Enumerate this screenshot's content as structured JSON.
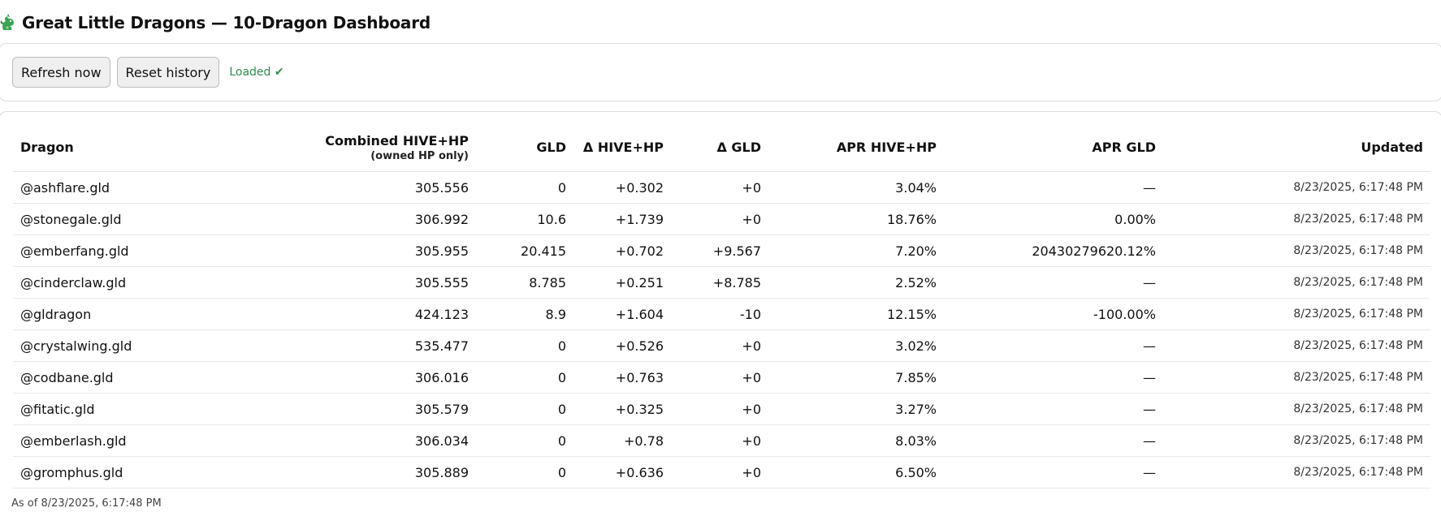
{
  "header": {
    "title": "Great Little Dragons — 10-Dragon Dashboard"
  },
  "toolbar": {
    "refresh_label": "Refresh now",
    "reset_label": "Reset history",
    "status": "Loaded ✔"
  },
  "table": {
    "columns": {
      "dragon": "Dragon",
      "combined": "Combined HIVE+HP",
      "combined_sub": "(owned HP only)",
      "gld": "GLD",
      "delta_hive": "Δ HIVE+HP",
      "delta_gld": "Δ GLD",
      "apr_hive": "APR HIVE+HP",
      "apr_gld": "APR GLD",
      "updated": "Updated"
    },
    "rows": [
      {
        "dragon": "@ashflare.gld",
        "combined": "305.556",
        "gld": "0",
        "delta_hive": "+0.302",
        "delta_gld": "+0",
        "apr_hive": "3.04%",
        "apr_gld": "—",
        "updated": "8/23/2025, 6:17:48 PM"
      },
      {
        "dragon": "@stonegale.gld",
        "combined": "306.992",
        "gld": "10.6",
        "delta_hive": "+1.739",
        "delta_gld": "+0",
        "apr_hive": "18.76%",
        "apr_gld": "0.00%",
        "updated": "8/23/2025, 6:17:48 PM"
      },
      {
        "dragon": "@emberfang.gld",
        "combined": "305.955",
        "gld": "20.415",
        "delta_hive": "+0.702",
        "delta_gld": "+9.567",
        "apr_hive": "7.20%",
        "apr_gld": "20430279620.12%",
        "updated": "8/23/2025, 6:17:48 PM"
      },
      {
        "dragon": "@cinderclaw.gld",
        "combined": "305.555",
        "gld": "8.785",
        "delta_hive": "+0.251",
        "delta_gld": "+8.785",
        "apr_hive": "2.52%",
        "apr_gld": "—",
        "updated": "8/23/2025, 6:17:48 PM"
      },
      {
        "dragon": "@gldragon",
        "combined": "424.123",
        "gld": "8.9",
        "delta_hive": "+1.604",
        "delta_gld": "-10",
        "apr_hive": "12.15%",
        "apr_gld": "-100.00%",
        "updated": "8/23/2025, 6:17:48 PM"
      },
      {
        "dragon": "@crystalwing.gld",
        "combined": "535.477",
        "gld": "0",
        "delta_hive": "+0.526",
        "delta_gld": "+0",
        "apr_hive": "3.02%",
        "apr_gld": "—",
        "updated": "8/23/2025, 6:17:48 PM"
      },
      {
        "dragon": "@codbane.gld",
        "combined": "306.016",
        "gld": "0",
        "delta_hive": "+0.763",
        "delta_gld": "+0",
        "apr_hive": "7.85%",
        "apr_gld": "—",
        "updated": "8/23/2025, 6:17:48 PM"
      },
      {
        "dragon": "@fitatic.gld",
        "combined": "305.579",
        "gld": "0",
        "delta_hive": "+0.325",
        "delta_gld": "+0",
        "apr_hive": "3.27%",
        "apr_gld": "—",
        "updated": "8/23/2025, 6:17:48 PM"
      },
      {
        "dragon": "@emberlash.gld",
        "combined": "306.034",
        "gld": "0",
        "delta_hive": "+0.78",
        "delta_gld": "+0",
        "apr_hive": "8.03%",
        "apr_gld": "—",
        "updated": "8/23/2025, 6:17:48 PM"
      },
      {
        "dragon": "@gromphus.gld",
        "combined": "305.889",
        "gld": "0",
        "delta_hive": "+0.636",
        "delta_gld": "+0",
        "apr_hive": "6.50%",
        "apr_gld": "—",
        "updated": "8/23/2025, 6:17:48 PM"
      }
    ]
  },
  "footer": {
    "as_of": "As of 8/23/2025, 6:17:48 PM"
  },
  "icons": {
    "title_icon": "dragon-icon"
  },
  "colors": {
    "status_ok": "#2e8b4e",
    "dragon_icon": "#3aa655"
  }
}
